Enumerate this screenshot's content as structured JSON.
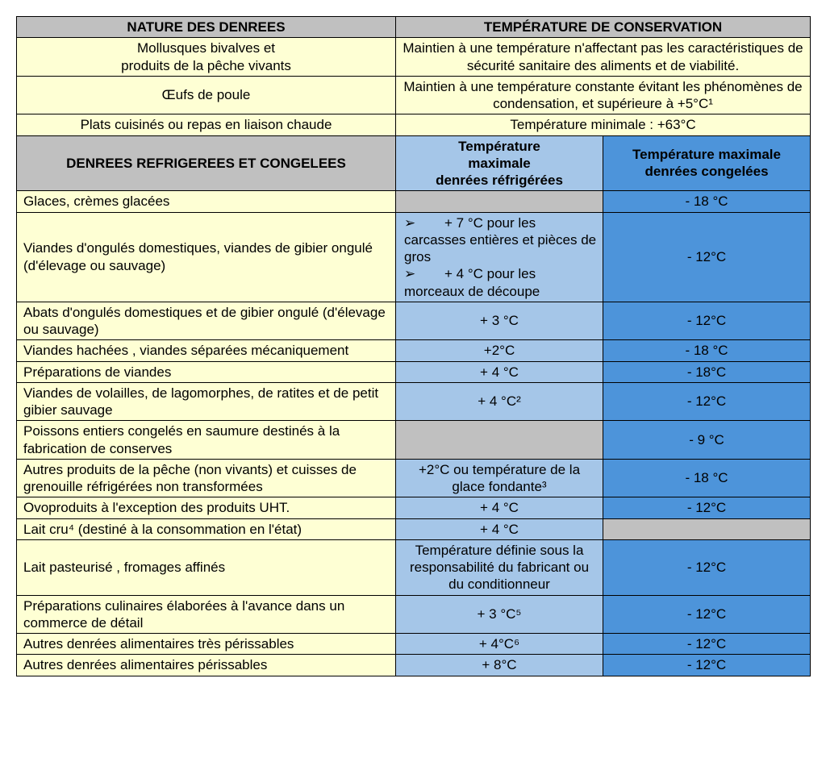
{
  "colors": {
    "grey": "#c0c0c0",
    "cream": "#feffd4",
    "lightBlue": "#a5c6e8",
    "darkBlue": "#4d94da",
    "border": "#000000"
  },
  "colWidths": {
    "c1": 470,
    "c2": 257,
    "c3": 257
  },
  "header1": {
    "left": "NATURE DES DENREES",
    "right": "TEMPÉRATURE DE CONSERVATION"
  },
  "topRows": [
    {
      "left": "Mollusques bivalves et\nproduits de la pêche vivants",
      "right": "Maintien à une température n'affectant pas les caractéristiques de sécurité sanitaire des aliments et de viabilité."
    },
    {
      "left": "Œufs de poule",
      "right": "Maintien à une température constante évitant les phénomènes de condensation, et supérieure à +5°C¹"
    },
    {
      "left": "Plats cuisinés ou repas en liaison chaude",
      "right": "Température minimale  : +63°C"
    }
  ],
  "header2": {
    "left": "DENREES REFRIGEREES ET CONGELEES",
    "mid": "Température\nmaximale\ndenrées réfrigérées",
    "right": "Température maximale denrées congelées"
  },
  "rows": [
    {
      "label": "Glaces, crèmes glacées",
      "refrig": null,
      "cong": "- 18 °C",
      "refrigBlank": true
    },
    {
      "label": "Viandes d'ongulés domestiques, viandes de gibier ongulé (d'élevage ou sauvage)",
      "refrigBullets": [
        "+ 7 °C pour les carcasses entières et pièces de gros",
        "+ 4 °C pour les morceaux de découpe"
      ],
      "cong": "- 12°C"
    },
    {
      "label": "Abats d'ongulés domestiques et de gibier ongulé (d'élevage ou sauvage)",
      "refrig": "+ 3 °C",
      "cong": "- 12°C"
    },
    {
      "label": "Viandes hachées , viandes séparées mécaniquement",
      "refrig": "+2°C",
      "cong": "- 18 °C"
    },
    {
      "label": "Préparations de viandes",
      "refrig": "+ 4 °C",
      "cong": "- 18°C"
    },
    {
      "label": "Viandes de volailles, de lagomorphes, de ratites et de petit gibier sauvage",
      "refrig": "+ 4 °C²",
      "cong": "- 12°C"
    },
    {
      "label": "Poissons entiers congelés en saumure destinés à la fabrication de conserves",
      "refrig": null,
      "cong": "- 9 °C",
      "refrigBlank": true
    },
    {
      "label": "Autres produits de la pêche  (non vivants) et cuisses de grenouille réfrigérées non transformées",
      "refrig": "+2°C ou température de la glace fondante³",
      "cong": "- 18 °C"
    },
    {
      "label": "Ovoproduits à l'exception des produits UHT.",
      "refrig": "+ 4 °C",
      "cong": "- 12°C"
    },
    {
      "label": "Lait cru⁴ (destiné à la consommation en l'état)",
      "refrig": "+ 4 °C",
      "cong": null,
      "congBlank": true
    },
    {
      "label": "Lait pasteurisé , fromages affinés",
      "refrig": "Température définie sous la responsabilité du fabricant ou du conditionneur",
      "cong": "- 12°C"
    },
    {
      "label": "Préparations culinaires élaborées à l'avance dans un commerce de détail",
      "refrig": "+ 3 °C⁵",
      "cong": "- 12°C"
    },
    {
      "label": "Autres denrées alimentaires très périssables",
      "refrig": "+ 4°C⁶",
      "cong": "- 12°C"
    },
    {
      "label": "Autres denrées alimentaires périssables",
      "refrig": "+ 8°C",
      "cong": "- 12°C"
    }
  ],
  "bulletGlyph": "➢"
}
